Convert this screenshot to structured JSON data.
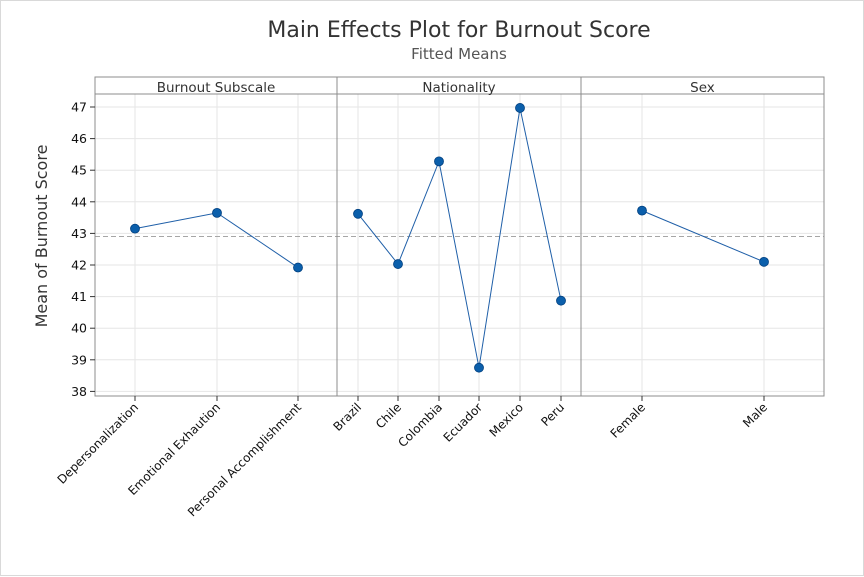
{
  "colors": {
    "line": "#1f5fa8",
    "marker": "#0b5fab",
    "reference_line": "#a6a6a6",
    "gridline": "#e6e6e6",
    "panel_border": "#8c8c8c"
  },
  "chart_data": {
    "type": "line",
    "title": "Main Effects Plot for Burnout Score",
    "subtitle": "Fitted Means",
    "ylabel": "Mean of Burnout Score",
    "ylim": [
      37.8,
      47.4
    ],
    "yticks": [
      38,
      39,
      40,
      41,
      42,
      43,
      44,
      45,
      46,
      47
    ],
    "grid": true,
    "reference_line": 42.9,
    "panels": [
      {
        "name": "Burnout Subscale",
        "categories": [
          "Depersonalization",
          "Emotional Exhaution",
          "Personal Accomplishment"
        ],
        "values": [
          43.15,
          43.65,
          41.92
        ]
      },
      {
        "name": "Nationality",
        "categories": [
          "Brazil",
          "Chile",
          "Colombia",
          "Ecuador",
          "Mexico",
          "Peru"
        ],
        "values": [
          43.62,
          42.03,
          45.28,
          38.75,
          46.97,
          40.87
        ]
      },
      {
        "name": "Sex",
        "categories": [
          "Female",
          "Male"
        ],
        "values": [
          43.72,
          42.1
        ]
      }
    ]
  }
}
